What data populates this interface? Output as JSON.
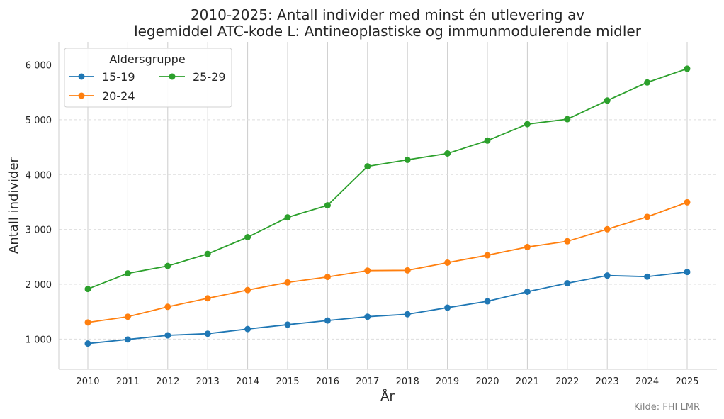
{
  "chart_data": {
    "type": "line",
    "title_lines": [
      "2010-2025: Antall individer med minst én utlevering av",
      "legemiddel ATC-kode L: Antineoplastiske og immunmodulerende midler"
    ],
    "xlabel": "År",
    "ylabel": "Antall individer",
    "x": [
      2010,
      2011,
      2012,
      2013,
      2014,
      2015,
      2016,
      2017,
      2018,
      2019,
      2020,
      2021,
      2022,
      2023,
      2024,
      2025
    ],
    "ylim": [
      450,
      6420
    ],
    "yticks": [
      1000,
      2000,
      3000,
      4000,
      5000,
      6000
    ],
    "ytick_labels": [
      "1 000",
      "2 000",
      "3 000",
      "4 000",
      "5 000",
      "6 000"
    ],
    "grid": {
      "x": true,
      "y": true,
      "y_style": "dashed"
    },
    "legend": {
      "title": "Aldersgruppe",
      "placement": "top-left",
      "columns": 2
    },
    "series": [
      {
        "name": "15-19",
        "color": "#1f77b4",
        "values": [
          920,
          995,
          1070,
          1100,
          1185,
          1265,
          1340,
          1410,
          1455,
          1575,
          1690,
          1865,
          2020,
          2160,
          2140,
          2225
        ]
      },
      {
        "name": "20-24",
        "color": "#ff7f0e",
        "values": [
          1305,
          1410,
          1590,
          1745,
          1895,
          2035,
          2135,
          2250,
          2255,
          2395,
          2530,
          2680,
          2785,
          3005,
          3230,
          3495
        ]
      },
      {
        "name": "25-29",
        "color": "#2ca02c",
        "values": [
          1915,
          2200,
          2335,
          2555,
          2860,
          3220,
          3440,
          4150,
          4270,
          4385,
          4620,
          4920,
          5010,
          5350,
          5680,
          5930
        ]
      }
    ],
    "source": "Kilde: FHI LMR"
  }
}
